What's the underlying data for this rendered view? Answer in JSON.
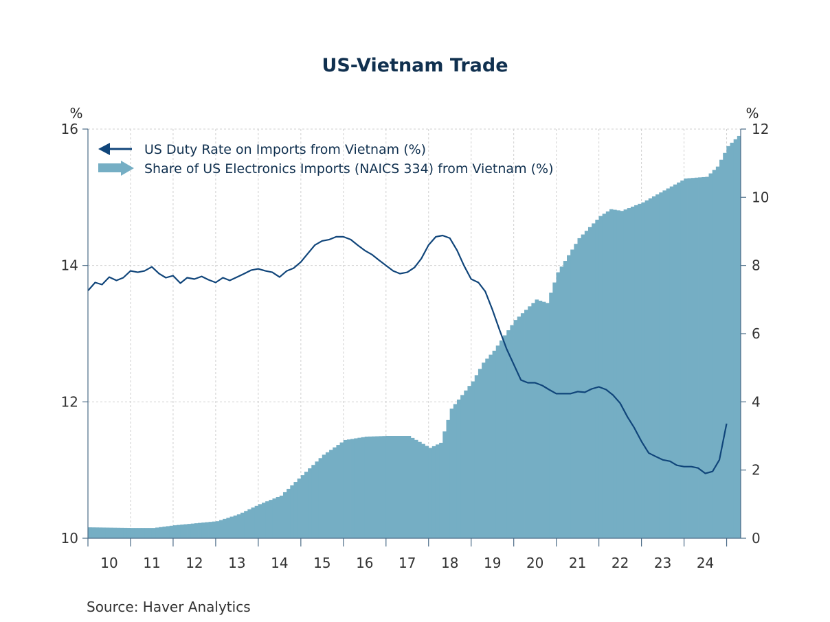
{
  "chart_data": {
    "type": "bar+line",
    "title": "US-Vietnam Trade",
    "left_axis_unit": "%",
    "right_axis_unit": "%",
    "left_ylim": [
      10,
      16
    ],
    "right_ylim": [
      0,
      12
    ],
    "left_ticks": [
      "10",
      "12",
      "14",
      "16"
    ],
    "right_ticks": [
      "0",
      "2",
      "4",
      "6",
      "8",
      "10",
      "12"
    ],
    "x_labels": [
      "10",
      "11",
      "12",
      "13",
      "14",
      "15",
      "16",
      "17",
      "18",
      "19",
      "20",
      "21",
      "22",
      "23",
      "24"
    ],
    "x_start": 2010.0,
    "x_end": 2025.33,
    "legend": [
      {
        "label": "US Duty Rate on Imports from Vietnam (%)",
        "axis": "left",
        "color": "#10457a"
      },
      {
        "label": "Share of US Electronics Imports (NAICS 334) from Vietnam (%)",
        "axis": "right",
        "color": "#75aec4"
      }
    ],
    "series": [
      {
        "name": "US Duty Rate on Imports from Vietnam (%)",
        "type": "line",
        "axis": "left",
        "points": [
          [
            2010.0,
            13.63
          ],
          [
            2010.17,
            13.75
          ],
          [
            2010.33,
            13.72
          ],
          [
            2010.5,
            13.83
          ],
          [
            2010.67,
            13.78
          ],
          [
            2010.83,
            13.82
          ],
          [
            2011.0,
            13.92
          ],
          [
            2011.17,
            13.9
          ],
          [
            2011.33,
            13.92
          ],
          [
            2011.5,
            13.98
          ],
          [
            2011.67,
            13.88
          ],
          [
            2011.83,
            13.82
          ],
          [
            2012.0,
            13.85
          ],
          [
            2012.17,
            13.74
          ],
          [
            2012.33,
            13.82
          ],
          [
            2012.5,
            13.8
          ],
          [
            2012.67,
            13.84
          ],
          [
            2012.83,
            13.79
          ],
          [
            2013.0,
            13.75
          ],
          [
            2013.17,
            13.82
          ],
          [
            2013.33,
            13.78
          ],
          [
            2013.5,
            13.83
          ],
          [
            2013.67,
            13.88
          ],
          [
            2013.83,
            13.93
          ],
          [
            2014.0,
            13.95
          ],
          [
            2014.17,
            13.92
          ],
          [
            2014.33,
            13.9
          ],
          [
            2014.5,
            13.83
          ],
          [
            2014.67,
            13.92
          ],
          [
            2014.83,
            13.96
          ],
          [
            2015.0,
            14.05
          ],
          [
            2015.17,
            14.18
          ],
          [
            2015.33,
            14.3
          ],
          [
            2015.5,
            14.36
          ],
          [
            2015.67,
            14.38
          ],
          [
            2015.83,
            14.42
          ],
          [
            2016.0,
            14.42
          ],
          [
            2016.17,
            14.38
          ],
          [
            2016.33,
            14.3
          ],
          [
            2016.5,
            14.22
          ],
          [
            2016.67,
            14.16
          ],
          [
            2016.83,
            14.08
          ],
          [
            2017.0,
            14.0
          ],
          [
            2017.17,
            13.92
          ],
          [
            2017.33,
            13.88
          ],
          [
            2017.5,
            13.9
          ],
          [
            2017.67,
            13.97
          ],
          [
            2017.83,
            14.1
          ],
          [
            2018.0,
            14.3
          ],
          [
            2018.17,
            14.42
          ],
          [
            2018.33,
            14.44
          ],
          [
            2018.5,
            14.4
          ],
          [
            2018.67,
            14.22
          ],
          [
            2018.83,
            14.0
          ],
          [
            2019.0,
            13.8
          ],
          [
            2019.17,
            13.75
          ],
          [
            2019.33,
            13.62
          ],
          [
            2019.5,
            13.35
          ],
          [
            2019.67,
            13.05
          ],
          [
            2019.83,
            12.78
          ],
          [
            2020.0,
            12.55
          ],
          [
            2020.17,
            12.32
          ],
          [
            2020.33,
            12.28
          ],
          [
            2020.5,
            12.28
          ],
          [
            2020.67,
            12.24
          ],
          [
            2020.83,
            12.18
          ],
          [
            2021.0,
            12.12
          ],
          [
            2021.17,
            12.12
          ],
          [
            2021.33,
            12.12
          ],
          [
            2021.5,
            12.15
          ],
          [
            2021.67,
            12.14
          ],
          [
            2021.83,
            12.19
          ],
          [
            2022.0,
            12.22
          ],
          [
            2022.17,
            12.18
          ],
          [
            2022.33,
            12.1
          ],
          [
            2022.5,
            11.98
          ],
          [
            2022.67,
            11.78
          ],
          [
            2022.83,
            11.62
          ],
          [
            2023.0,
            11.42
          ],
          [
            2023.17,
            11.25
          ],
          [
            2023.33,
            11.2
          ],
          [
            2023.5,
            11.15
          ],
          [
            2023.67,
            11.13
          ],
          [
            2023.83,
            11.07
          ],
          [
            2024.0,
            11.05
          ],
          [
            2024.17,
            11.05
          ],
          [
            2024.33,
            11.03
          ],
          [
            2024.5,
            10.95
          ],
          [
            2024.67,
            10.98
          ],
          [
            2024.83,
            11.15
          ],
          [
            2025.0,
            11.68
          ]
        ]
      },
      {
        "name": "Share of US Electronics Imports (NAICS 334) from Vietnam (%)",
        "type": "bar",
        "axis": "right",
        "points": [
          [
            2010.0,
            0.32
          ],
          [
            2011.0,
            0.3
          ],
          [
            2011.5,
            0.3
          ],
          [
            2012.0,
            0.38
          ],
          [
            2012.5,
            0.44
          ],
          [
            2013.0,
            0.5
          ],
          [
            2013.5,
            0.7
          ],
          [
            2014.0,
            1.0
          ],
          [
            2014.5,
            1.25
          ],
          [
            2015.0,
            1.85
          ],
          [
            2015.5,
            2.45
          ],
          [
            2016.0,
            2.88
          ],
          [
            2016.5,
            2.98
          ],
          [
            2017.0,
            3.0
          ],
          [
            2017.5,
            3.0
          ],
          [
            2018.0,
            2.65
          ],
          [
            2018.25,
            2.8
          ],
          [
            2018.5,
            3.8
          ],
          [
            2019.0,
            4.6
          ],
          [
            2019.25,
            5.15
          ],
          [
            2019.5,
            5.5
          ],
          [
            2020.0,
            6.4
          ],
          [
            2020.5,
            7.0
          ],
          [
            2020.75,
            6.9
          ],
          [
            2021.0,
            7.8
          ],
          [
            2021.5,
            8.8
          ],
          [
            2022.0,
            9.45
          ],
          [
            2022.25,
            9.65
          ],
          [
            2022.5,
            9.6
          ],
          [
            2023.0,
            9.85
          ],
          [
            2023.5,
            10.2
          ],
          [
            2024.0,
            10.55
          ],
          [
            2024.5,
            10.6
          ],
          [
            2024.75,
            10.9
          ],
          [
            2025.0,
            11.5
          ],
          [
            2025.25,
            11.8
          ]
        ]
      }
    ]
  },
  "source": "Source:  Haver Analytics"
}
